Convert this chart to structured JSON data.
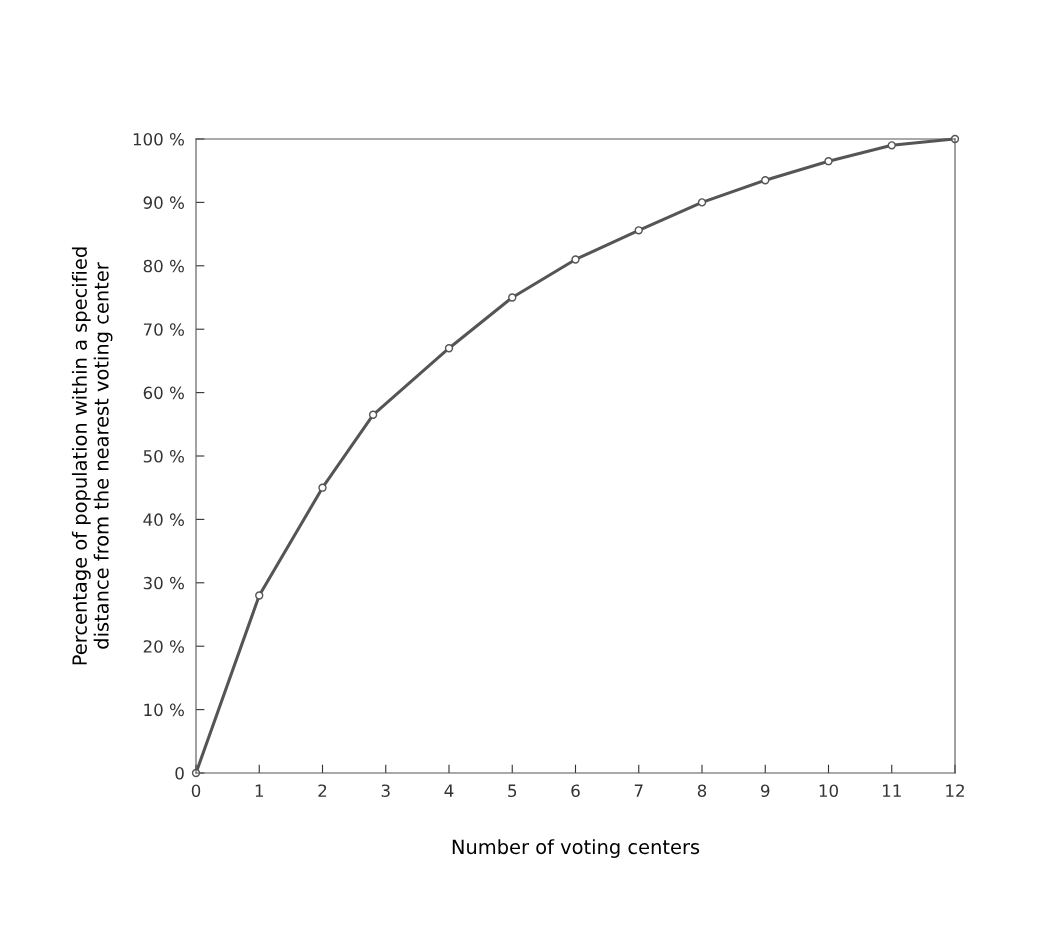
{
  "chart_data": {
    "type": "line",
    "xlabel": "Number of voting centers",
    "ylabel": "Percentage of population within a specified\ndistance from the nearest voting center",
    "x": [
      0,
      1,
      2,
      2.8,
      4,
      5,
      6,
      7,
      8,
      9,
      10,
      11,
      12
    ],
    "series": [
      {
        "color": "#555555",
        "values": [
          0,
          28,
          45,
          56.5,
          67,
          75,
          81,
          85.6,
          90,
          93.5,
          96.5,
          99,
          100
        ]
      }
    ],
    "marker": "circle",
    "line_style": "solid",
    "xlim": [
      0,
      12
    ],
    "ylim": [
      0,
      100
    ],
    "xticks": [
      0,
      1,
      2,
      3,
      4,
      5,
      6,
      7,
      8,
      9,
      10,
      11,
      12
    ],
    "yticks": [
      0,
      {
        "value": 10,
        "label": "10 %"
      },
      {
        "value": 20,
        "label": "20 %"
      },
      {
        "value": 30,
        "label": "30 %"
      },
      {
        "value": 40,
        "label": "40 %"
      },
      {
        "value": 50,
        "label": "50 %"
      },
      {
        "value": 60,
        "label": "60 %"
      },
      {
        "value": 70,
        "label": "70 %"
      },
      {
        "value": 80,
        "label": "80 %"
      },
      {
        "value": 90,
        "label": "90 %"
      },
      {
        "value": 100,
        "label": "100 %"
      }
    ],
    "grid": false,
    "legend": false
  }
}
